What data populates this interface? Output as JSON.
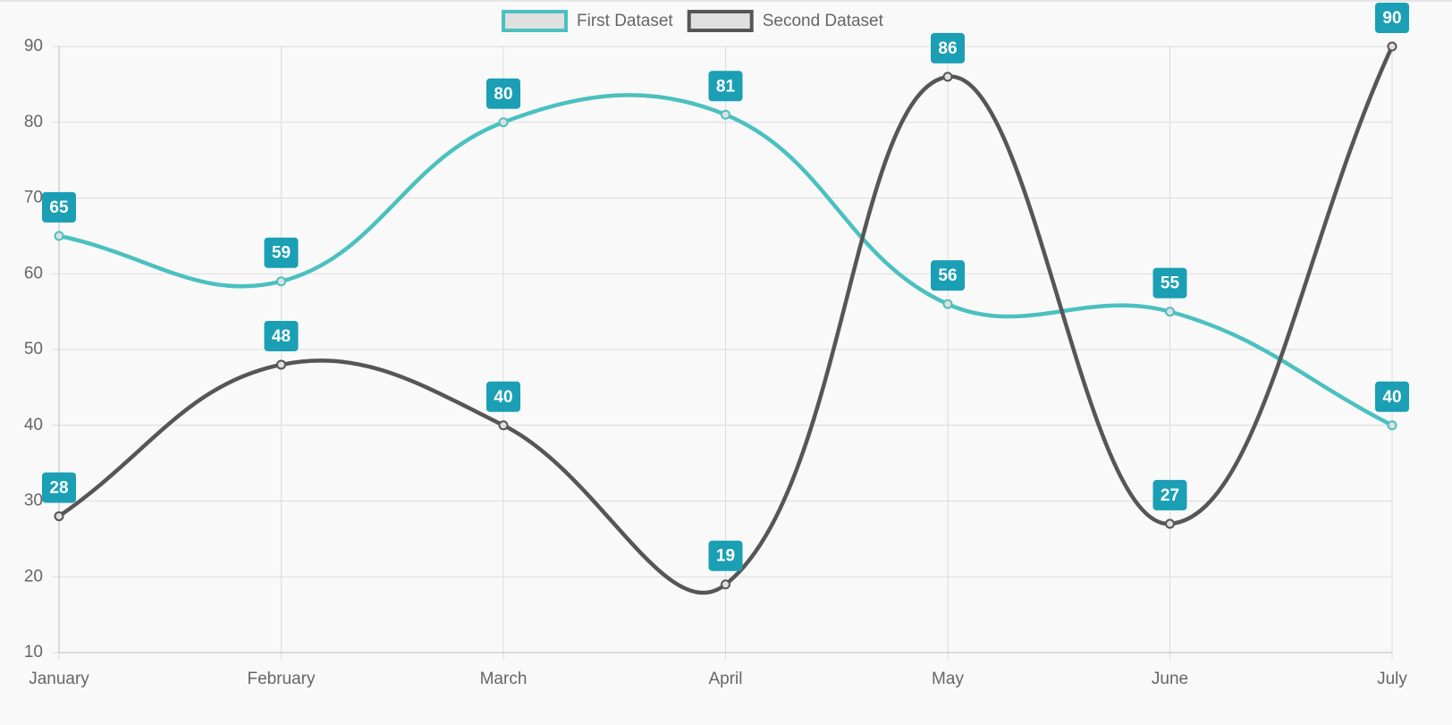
{
  "chart_data": {
    "type": "line",
    "categories": [
      "January",
      "February",
      "March",
      "April",
      "May",
      "June",
      "July"
    ],
    "series": [
      {
        "name": "First Dataset",
        "color": "#4bc0c0",
        "values": [
          65,
          59,
          80,
          81,
          56,
          55,
          40
        ]
      },
      {
        "name": "Second Dataset",
        "color": "#565656",
        "values": [
          28,
          48,
          40,
          19,
          86,
          27,
          90
        ]
      }
    ],
    "ylim": [
      10,
      90
    ],
    "yticks": [
      10,
      20,
      30,
      40,
      50,
      60,
      70,
      80,
      90
    ],
    "grid": true,
    "legend": "top",
    "label_color": "#1a9fb5"
  }
}
